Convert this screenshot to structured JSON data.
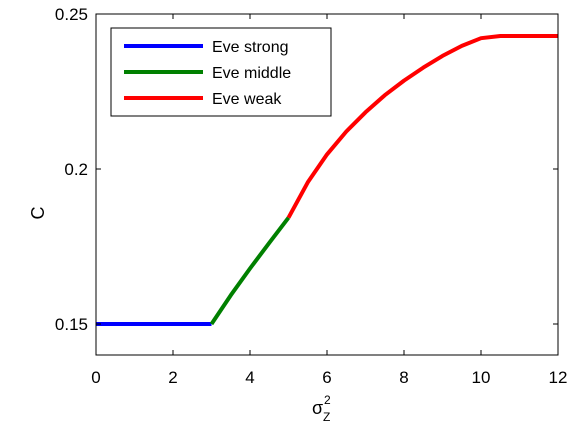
{
  "chart_data": {
    "type": "line",
    "xlabel": "σ",
    "xlabel_superscript": "2",
    "xlabel_subscript": "Z",
    "ylabel": "C",
    "xlim": [
      0,
      12
    ],
    "ylim": [
      0.14,
      0.25
    ],
    "xticks": [
      0,
      2,
      4,
      6,
      8,
      10,
      12
    ],
    "xtick_labels": [
      "0",
      "2",
      "4",
      "6",
      "8",
      "10",
      "12"
    ],
    "yticks": [
      0.15,
      0.2,
      0.25
    ],
    "ytick_labels": [
      "0.15",
      "0.2",
      "0.25"
    ],
    "grid": false,
    "legend_position": "top-left",
    "series": [
      {
        "name": "Eve strong",
        "color": "#0000ff",
        "x": [
          0,
          1,
          2,
          3
        ],
        "y": [
          0.15,
          0.15,
          0.15,
          0.15
        ]
      },
      {
        "name": "Eve middle",
        "color": "#008000",
        "x": [
          3,
          3.5,
          4,
          4.5,
          5
        ],
        "y": [
          0.15,
          0.1593,
          0.1679,
          0.1762,
          0.1843
        ]
      },
      {
        "name": "Eve weak",
        "color": "#ff0000",
        "x": [
          5,
          5.5,
          6,
          6.5,
          7,
          7.5,
          8,
          8.5,
          9,
          9.5,
          10,
          10.5,
          11,
          11.5,
          12
        ],
        "y": [
          0.1843,
          0.1957,
          0.2047,
          0.2121,
          0.2183,
          0.2238,
          0.2285,
          0.2327,
          0.2365,
          0.2397,
          0.2422,
          0.2429,
          0.2429,
          0.2429,
          0.2429
        ]
      }
    ]
  }
}
